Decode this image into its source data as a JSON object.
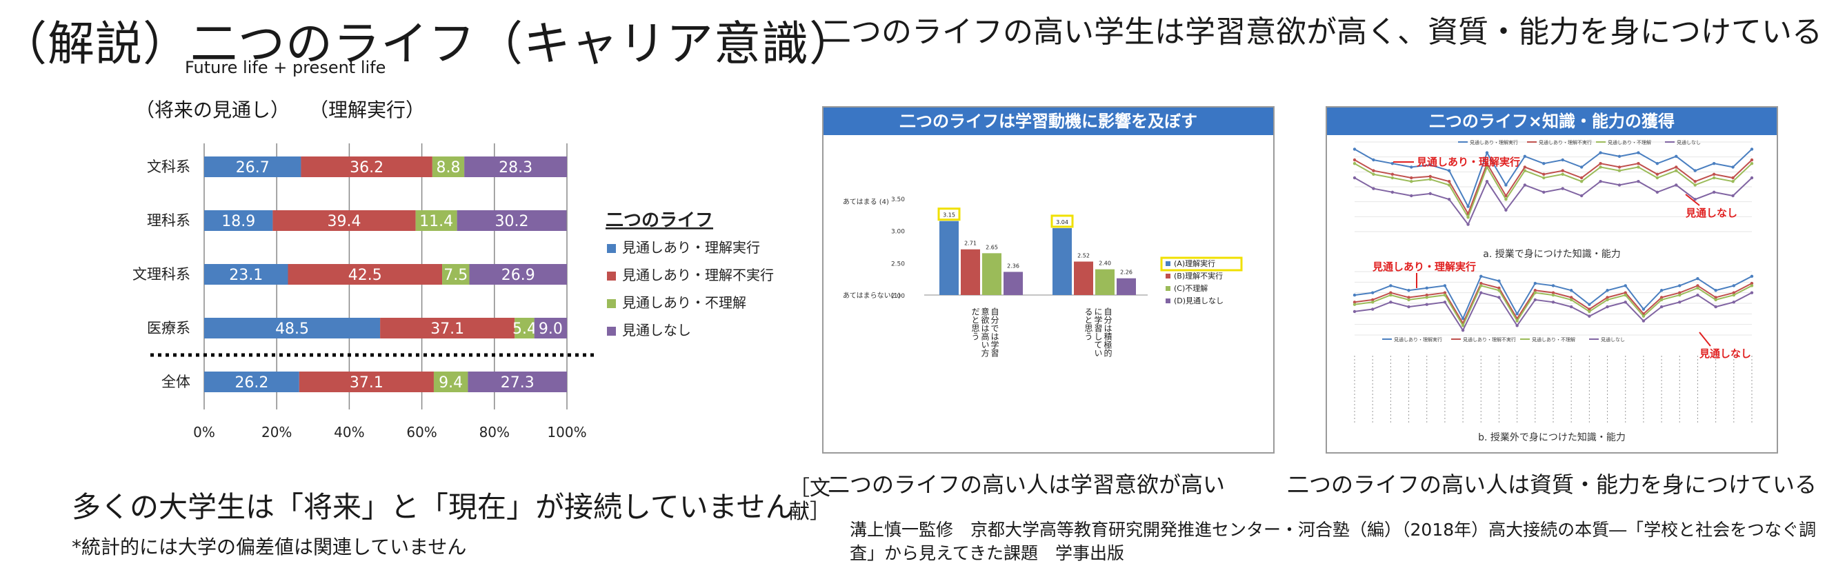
{
  "title": "（解説）二つのライフ（キャリア意識）",
  "subtitle_en": "Future life + present life",
  "axis_caption_1": "（将来の見通し）",
  "axis_caption_2": "（理解実行）",
  "right_title": "二つのライフの高い学生は学習意欲が高く、資質・能力を身につけている",
  "message_main": "多くの大学生は「将来」と「現在」が接続していません",
  "message_note": "*統計的には大学の偏差値は関連していません",
  "caption_left": "二つのライフの高い人は学習意欲が高い",
  "caption_right": "二つのライフの高い人は資質・能力を身につけている",
  "reference_label": "［文献］",
  "reference_text": "溝上慎一監修　京都大学高等教育研究開発推進センター・河合塾（編）（2018年）高大接続の本質―「学校と社会をつなぐ調査」から見えてきた課題　学事出版",
  "chart_data": [
    {
      "type": "bar",
      "orientation": "horizontal-stacked-percent",
      "categories": [
        "文科系",
        "理科系",
        "文理科系",
        "医療系",
        "全体"
      ],
      "series": [
        {
          "name": "見通しあり・理解実行",
          "color": "#4a7fc0",
          "values": [
            26.7,
            18.9,
            23.1,
            48.5,
            26.2
          ]
        },
        {
          "name": "見通しあり・理解不実行",
          "color": "#c0504d",
          "values": [
            36.2,
            39.4,
            42.5,
            37.1,
            37.1
          ]
        },
        {
          "name": "見通しあり・不理解",
          "color": "#9bbb59",
          "values": [
            8.8,
            11.4,
            7.5,
            5.4,
            9.4
          ]
        },
        {
          "name": "見通しなし",
          "color": "#8064a2",
          "values": [
            28.3,
            30.2,
            26.9,
            9.0,
            27.3
          ]
        }
      ],
      "legend_title": "二つのライフ",
      "xticks": [
        "0%",
        "20%",
        "40%",
        "60%",
        "80%",
        "100%"
      ],
      "xlim": [
        0,
        100
      ],
      "grid": true,
      "legend_placement": "right"
    },
    {
      "type": "bar",
      "header": "二つのライフは学習動機に影響を及ぼす",
      "categories": [
        "自分では学習意欲は高い方だと思う",
        "自分は積極的に学習していると思う"
      ],
      "series": [
        {
          "name": "(A)理解実行",
          "color": "#4a7fc0",
          "values": [
            3.15,
            3.04
          ]
        },
        {
          "name": "(B)理解不実行",
          "color": "#c0504d",
          "values": [
            2.71,
            2.52
          ]
        },
        {
          "name": "(C)不理解",
          "color": "#9bbb59",
          "values": [
            2.65,
            2.4
          ]
        },
        {
          "name": "(D)見通しなし",
          "color": "#8064a2",
          "values": [
            2.36,
            2.26
          ]
        }
      ],
      "ylim": [
        2.0,
        3.5
      ],
      "yticks": [
        "3.50",
        "3.00",
        "2.50",
        "2.00"
      ],
      "ylabel_top": "あてはまる (4)",
      "ylabel_bottom": "あてはまらない(1)",
      "legend_placement": "right"
    },
    {
      "type": "line",
      "header": "二つのライフ×知識・能力の獲得",
      "panels": [
        {
          "caption": "a. 授業で身につけた知識・能力",
          "annotations": [
            "見通しあり・理解実行",
            "見通しなし"
          ],
          "series": [
            {
              "name": "見通しあり・理解実行",
              "color": "#4a7fc0",
              "values": [
                3.0,
                2.85,
                2.8,
                2.75,
                2.78,
                2.7,
                2.2,
                2.95,
                2.5,
                2.9,
                2.8,
                2.85,
                2.75,
                2.95,
                2.9,
                2.95,
                2.8,
                2.9,
                2.7,
                2.8,
                2.75,
                3.0
              ]
            },
            {
              "name": "見通しあり・理解不実行",
              "color": "#c0504d",
              "values": [
                2.85,
                2.7,
                2.65,
                2.6,
                2.62,
                2.55,
                2.1,
                2.8,
                2.35,
                2.75,
                2.65,
                2.7,
                2.6,
                2.8,
                2.75,
                2.8,
                2.65,
                2.75,
                2.55,
                2.65,
                2.6,
                2.85
              ]
            },
            {
              "name": "見通しあり・不理解",
              "color": "#9bbb59",
              "values": [
                2.8,
                2.65,
                2.6,
                2.55,
                2.58,
                2.5,
                2.05,
                2.75,
                2.3,
                2.7,
                2.6,
                2.65,
                2.55,
                2.75,
                2.7,
                2.75,
                2.6,
                2.7,
                2.5,
                2.6,
                2.55,
                2.8
              ]
            },
            {
              "name": "見通しなし",
              "color": "#8064a2",
              "values": [
                2.6,
                2.45,
                2.4,
                2.35,
                2.38,
                2.3,
                1.95,
                2.55,
                2.15,
                2.5,
                2.4,
                2.45,
                2.35,
                2.55,
                2.5,
                2.55,
                2.4,
                2.5,
                2.3,
                2.4,
                2.35,
                2.6
              ]
            }
          ]
        },
        {
          "caption": "b. 授業外で身につけた知識・能力",
          "annotations": [
            "見通しあり・理解実行",
            "見通しなし"
          ],
          "series": [
            {
              "name": "見通しあり・理解実行",
              "color": "#4a7fc0",
              "values": [
                2.5,
                2.55,
                2.7,
                2.6,
                2.65,
                2.7,
                2.0,
                2.9,
                2.8,
                2.1,
                2.75,
                2.7,
                2.6,
                2.3,
                2.6,
                2.7,
                2.2,
                2.6,
                2.7,
                2.85,
                2.6,
                2.7,
                2.9
              ]
            },
            {
              "name": "見通しあり・理解不実行",
              "color": "#c0504d",
              "values": [
                2.35,
                2.4,
                2.55,
                2.45,
                2.5,
                2.55,
                1.9,
                2.75,
                2.65,
                2.0,
                2.6,
                2.55,
                2.45,
                2.2,
                2.45,
                2.55,
                2.1,
                2.45,
                2.55,
                2.7,
                2.45,
                2.55,
                2.75
              ]
            },
            {
              "name": "見通しあり・不理解",
              "color": "#9bbb59",
              "values": [
                2.3,
                2.35,
                2.5,
                2.4,
                2.45,
                2.5,
                1.85,
                2.7,
                2.6,
                1.95,
                2.55,
                2.5,
                2.4,
                2.15,
                2.4,
                2.5,
                2.05,
                2.4,
                2.5,
                2.65,
                2.4,
                2.5,
                2.7
              ]
            },
            {
              "name": "見通しなし",
              "color": "#8064a2",
              "values": [
                2.15,
                2.2,
                2.35,
                2.25,
                2.3,
                2.35,
                1.75,
                2.55,
                2.45,
                1.85,
                2.4,
                2.35,
                2.25,
                2.05,
                2.25,
                2.35,
                1.95,
                2.25,
                2.35,
                2.5,
                2.25,
                2.35,
                2.55
              ]
            }
          ]
        }
      ]
    }
  ]
}
